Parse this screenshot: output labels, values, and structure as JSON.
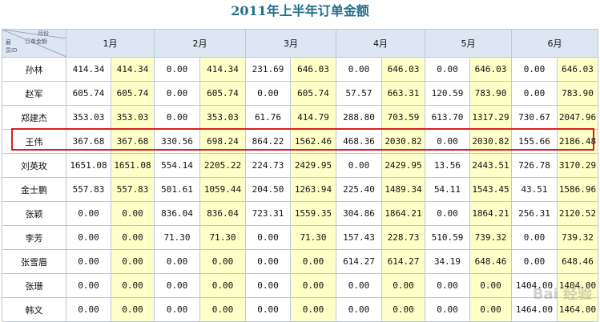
{
  "title": "2011年上半年订单金额",
  "corner": {
    "top": "月份",
    "mid": "订单金额",
    "left_line1": "雇",
    "left_line2": "员ID"
  },
  "months": [
    "1月",
    "2月",
    "3月",
    "4月",
    "5月",
    "6月"
  ],
  "rows": [
    {
      "name": "孙林",
      "values": [
        "414.34",
        "414.34",
        "0.00",
        "414.34",
        "231.69",
        "646.03",
        "0.00",
        "646.03",
        "0.00",
        "646.03",
        "0.00",
        "646.03"
      ]
    },
    {
      "name": "赵军",
      "values": [
        "605.74",
        "605.74",
        "0.00",
        "605.74",
        "0.00",
        "605.74",
        "57.57",
        "663.31",
        "120.59",
        "783.90",
        "0.00",
        "783.90"
      ]
    },
    {
      "name": "郑建杰",
      "values": [
        "353.03",
        "353.03",
        "0.00",
        "353.03",
        "61.76",
        "414.79",
        "288.80",
        "703.59",
        "613.70",
        "1317.29",
        "730.67",
        "2047.96"
      ]
    },
    {
      "name": "王伟",
      "values": [
        "367.68",
        "367.68",
        "330.56",
        "698.24",
        "864.22",
        "1562.46",
        "468.36",
        "2030.82",
        "0.00",
        "2030.82",
        "155.66",
        "2186.48"
      ]
    },
    {
      "name": "刘英玫",
      "values": [
        "1651.08",
        "1651.08",
        "554.14",
        "2205.22",
        "224.73",
        "2429.95",
        "0.00",
        "2429.95",
        "13.56",
        "2443.51",
        "726.78",
        "3170.29"
      ]
    },
    {
      "name": "金士鹏",
      "values": [
        "557.83",
        "557.83",
        "501.61",
        "1059.44",
        "204.50",
        "1263.94",
        "225.40",
        "1489.34",
        "54.11",
        "1543.45",
        "43.51",
        "1586.96"
      ]
    },
    {
      "name": "张颖",
      "values": [
        "0.00",
        "0.00",
        "836.04",
        "836.04",
        "723.31",
        "1559.35",
        "304.86",
        "1864.21",
        "0.00",
        "1864.21",
        "256.31",
        "2120.52"
      ]
    },
    {
      "name": "李芳",
      "values": [
        "0.00",
        "0.00",
        "71.30",
        "71.30",
        "0.00",
        "71.30",
        "157.43",
        "228.73",
        "510.59",
        "739.32",
        "0.00",
        "739.32"
      ]
    },
    {
      "name": "张雪眉",
      "values": [
        "0.00",
        "0.00",
        "0.00",
        "0.00",
        "0.00",
        "0.00",
        "614.27",
        "614.27",
        "34.19",
        "648.46",
        "0.00",
        "648.46"
      ]
    },
    {
      "name": "张珊",
      "values": [
        "0.00",
        "0.00",
        "0.00",
        "0.00",
        "0.00",
        "0.00",
        "0.00",
        "0.00",
        "0.00",
        "0.00",
        "1404.00",
        "1404.00"
      ]
    },
    {
      "name": "韩文",
      "values": [
        "0.00",
        "0.00",
        "0.00",
        "0.00",
        "0.00",
        "0.00",
        "0.00",
        "0.00",
        "0.00",
        "0.00",
        "1464.00",
        "1464.00"
      ]
    }
  ],
  "highlight_row": "王伟",
  "colors": {
    "header_bg": "#dde6f3",
    "cumulative_bg": "#ffffc8",
    "title": "#1f6f8b",
    "highlight_border": "#d62020"
  },
  "watermark": "Bai 经验"
}
